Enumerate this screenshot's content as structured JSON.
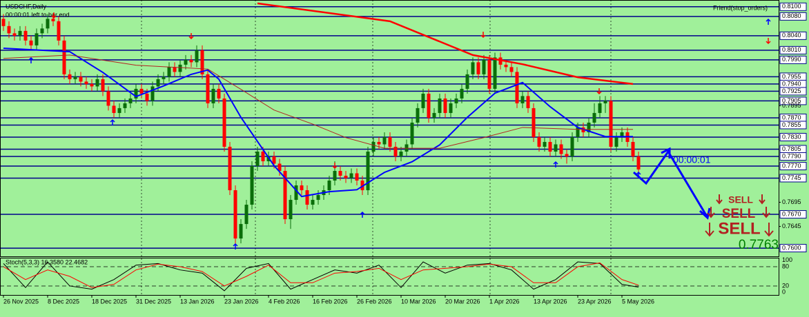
{
  "chart_data": {
    "type": "candlestick",
    "title": "USDCHF,Daily",
    "subtitle": "00:00:01 left to bar end",
    "indicator_label": "Friend(stop_orders)",
    "timer": "00:00:01",
    "signals": [
      "SELL",
      "SELL",
      "SELL"
    ],
    "last_price": 0.7763,
    "background": "#a0f09a",
    "up_color": "#0a6e0a",
    "down_color": "#ff0000",
    "level_color": "#00008b",
    "xlim": [
      -0.625,
      140.375
    ],
    "ylim": [
      0.7583,
      0.8114
    ],
    "xticks": [
      {
        "value": 0,
        "label": "26 Nov 2025"
      },
      {
        "value": 8,
        "label": "8 Dec 2025"
      },
      {
        "value": 16,
        "label": "18 Dec 2025"
      },
      {
        "value": 24,
        "label": "31 Dec 2025"
      },
      {
        "value": 32,
        "label": "13 Jan 2026"
      },
      {
        "value": 40,
        "label": "23 Jan 2026"
      },
      {
        "value": 48,
        "label": "4 Feb 2026"
      },
      {
        "value": 56,
        "label": "16 Feb 2026"
      },
      {
        "value": 64,
        "label": "26 Feb 2026"
      },
      {
        "value": 72,
        "label": "10 Mar 2026"
      },
      {
        "value": 80,
        "label": "20 Mar 2026"
      },
      {
        "value": 88,
        "label": "1 Apr 2026"
      },
      {
        "value": 96,
        "label": "13 Apr 2026"
      },
      {
        "value": 104,
        "label": "23 Apr 2026"
      },
      {
        "value": 112,
        "label": "5 May 2026"
      }
    ],
    "yticks": [
      {
        "value": 0.81,
        "label": "0.8100",
        "level": true
      },
      {
        "value": 0.808,
        "label": "0.8080",
        "level": true
      },
      {
        "value": 0.804,
        "label": "0.8040",
        "level": true
      },
      {
        "value": 0.801,
        "label": "0.8010",
        "level": true
      },
      {
        "value": 0.799,
        "label": "0.7990",
        "level": true
      },
      {
        "value": 0.7955,
        "label": "0.7955",
        "level": true
      },
      {
        "value": 0.794,
        "label": "0.7940",
        "level": true
      },
      {
        "value": 0.7925,
        "label": "0.7925",
        "level": true
      },
      {
        "value": 0.7905,
        "label": "0.7905",
        "level": true
      },
      {
        "value": 0.7895,
        "label": "0.7895",
        "level": false
      },
      {
        "value": 0.787,
        "label": "0.7870",
        "level": true
      },
      {
        "value": 0.7855,
        "label": "0.7855",
        "level": true
      },
      {
        "value": 0.783,
        "label": "0.7830",
        "level": true
      },
      {
        "value": 0.7805,
        "label": "0.7805",
        "level": true
      },
      {
        "value": 0.779,
        "label": "0.7790",
        "level": true
      },
      {
        "value": 0.777,
        "label": "0.7770",
        "level": true
      },
      {
        "value": 0.7745,
        "label": "0.7745",
        "level": true
      },
      {
        "value": 0.7695,
        "label": "0.7695",
        "level": false
      },
      {
        "value": 0.767,
        "label": "0.7670",
        "level": true
      },
      {
        "value": 0.7645,
        "label": "0.7645",
        "level": false
      },
      {
        "value": 0.76,
        "label": "0.7600",
        "level": true
      }
    ],
    "series": [
      {
        "values": [
          [
            0.8075,
            0.8085,
            0.805,
            0.806
          ],
          [
            0.806,
            0.807,
            0.8035,
            0.8045
          ],
          [
            0.8045,
            0.8055,
            0.803,
            0.804
          ],
          [
            0.804,
            0.806,
            0.803,
            0.805
          ],
          [
            0.805,
            0.806,
            0.802,
            0.803
          ],
          [
            0.803,
            0.804,
            0.801,
            0.802
          ],
          [
            0.802,
            0.8055,
            0.801,
            0.8045
          ],
          [
            0.8045,
            0.8065,
            0.8035,
            0.8055
          ],
          [
            0.8055,
            0.8085,
            0.8045,
            0.8075
          ],
          [
            0.8075,
            0.8085,
            0.806,
            0.807
          ],
          [
            0.807,
            0.808,
            0.802,
            0.803
          ],
          [
            0.803,
            0.804,
            0.795,
            0.796
          ],
          [
            0.796,
            0.797,
            0.794,
            0.795
          ],
          [
            0.795,
            0.7965,
            0.794,
            0.7955
          ],
          [
            0.7955,
            0.7965,
            0.7935,
            0.7945
          ],
          [
            0.7945,
            0.7955,
            0.793,
            0.794
          ],
          [
            0.794,
            0.795,
            0.7925,
            0.7935
          ],
          [
            0.7935,
            0.796,
            0.7925,
            0.795
          ],
          [
            0.795,
            0.796,
            0.7915,
            0.7925
          ],
          [
            0.7925,
            0.7935,
            0.7885,
            0.7895
          ],
          [
            0.7895,
            0.7905,
            0.787,
            0.788
          ],
          [
            0.788,
            0.79,
            0.787,
            0.789
          ],
          [
            0.789,
            0.791,
            0.788,
            0.79
          ],
          [
            0.79,
            0.792,
            0.789,
            0.791
          ],
          [
            0.791,
            0.794,
            0.79,
            0.793
          ],
          [
            0.793,
            0.794,
            0.791,
            0.792
          ],
          [
            0.792,
            0.793,
            0.7895,
            0.7905
          ],
          [
            0.7905,
            0.7945,
            0.7895,
            0.7935
          ],
          [
            0.7935,
            0.796,
            0.7925,
            0.795
          ],
          [
            0.795,
            0.7965,
            0.794,
            0.7955
          ],
          [
            0.7955,
            0.7985,
            0.7945,
            0.7975
          ],
          [
            0.7975,
            0.7985,
            0.7955,
            0.7965
          ],
          [
            0.7965,
            0.799,
            0.7955,
            0.798
          ],
          [
            0.798,
            0.8,
            0.797,
            0.799
          ],
          [
            0.799,
            0.8,
            0.7975,
            0.7985
          ],
          [
            0.7985,
            0.802,
            0.7975,
            0.801
          ],
          [
            0.801,
            0.802,
            0.795,
            0.796
          ],
          [
            0.796,
            0.797,
            0.789,
            0.79
          ],
          [
            0.79,
            0.794,
            0.789,
            0.793
          ],
          [
            0.793,
            0.794,
            0.79,
            0.791
          ],
          [
            0.791,
            0.792,
            0.78,
            0.781
          ],
          [
            0.781,
            0.782,
            0.771,
            0.772
          ],
          [
            0.772,
            0.773,
            0.7605,
            0.762
          ],
          [
            0.762,
            0.766,
            0.761,
            0.765
          ],
          [
            0.765,
            0.77,
            0.764,
            0.769
          ],
          [
            0.769,
            0.778,
            0.768,
            0.777
          ],
          [
            0.777,
            0.781,
            0.776,
            0.78
          ],
          [
            0.78,
            0.781,
            0.777,
            0.778
          ],
          [
            0.778,
            0.78,
            0.777,
            0.779
          ],
          [
            0.779,
            0.78,
            0.7765,
            0.7775
          ],
          [
            0.7775,
            0.7785,
            0.775,
            0.776
          ],
          [
            0.776,
            0.777,
            0.765,
            0.766
          ],
          [
            0.766,
            0.771,
            0.764,
            0.77
          ],
          [
            0.77,
            0.774,
            0.769,
            0.773
          ],
          [
            0.773,
            0.774,
            0.771,
            0.772
          ],
          [
            0.772,
            0.773,
            0.768,
            0.769
          ],
          [
            0.769,
            0.771,
            0.768,
            0.77
          ],
          [
            0.77,
            0.772,
            0.769,
            0.771
          ],
          [
            0.771,
            0.773,
            0.77,
            0.772
          ],
          [
            0.772,
            0.775,
            0.771,
            0.774
          ],
          [
            0.774,
            0.778,
            0.773,
            0.776
          ],
          [
            0.776,
            0.777,
            0.774,
            0.775
          ],
          [
            0.775,
            0.776,
            0.7735,
            0.7745
          ],
          [
            0.7745,
            0.7765,
            0.7735,
            0.7755
          ],
          [
            0.7755,
            0.7765,
            0.773,
            0.774
          ],
          [
            0.774,
            0.775,
            0.771,
            0.772
          ],
          [
            0.772,
            0.781,
            0.771,
            0.78
          ],
          [
            0.78,
            0.783,
            0.779,
            0.782
          ],
          [
            0.782,
            0.783,
            0.7805,
            0.7815
          ],
          [
            0.7815,
            0.784,
            0.7805,
            0.783
          ],
          [
            0.783,
            0.784,
            0.78,
            0.781
          ],
          [
            0.781,
            0.782,
            0.778,
            0.779
          ],
          [
            0.779,
            0.781,
            0.778,
            0.78
          ],
          [
            0.78,
            0.7825,
            0.779,
            0.7815
          ],
          [
            0.7815,
            0.787,
            0.7805,
            0.786
          ],
          [
            0.786,
            0.79,
            0.785,
            0.789
          ],
          [
            0.789,
            0.793,
            0.788,
            0.792
          ],
          [
            0.792,
            0.793,
            0.786,
            0.787
          ],
          [
            0.787,
            0.789,
            0.786,
            0.788
          ],
          [
            0.788,
            0.792,
            0.787,
            0.791
          ],
          [
            0.791,
            0.792,
            0.787,
            0.788
          ],
          [
            0.788,
            0.791,
            0.787,
            0.79
          ],
          [
            0.79,
            0.792,
            0.789,
            0.791
          ],
          [
            0.791,
            0.794,
            0.79,
            0.793
          ],
          [
            0.793,
            0.797,
            0.792,
            0.796
          ],
          [
            0.796,
            0.7995,
            0.795,
            0.7985
          ],
          [
            0.7985,
            0.7995,
            0.795,
            0.796
          ],
          [
            0.796,
            0.8,
            0.795,
            0.799
          ],
          [
            0.799,
            0.8,
            0.792,
            0.793
          ],
          [
            0.793,
            0.8005,
            0.792,
            0.7995
          ],
          [
            0.7995,
            0.8005,
            0.797,
            0.798
          ],
          [
            0.798,
            0.799,
            0.7965,
            0.7975
          ],
          [
            0.7975,
            0.7985,
            0.7955,
            0.7965
          ],
          [
            0.7965,
            0.7975,
            0.789,
            0.79
          ],
          [
            0.79,
            0.7925,
            0.789,
            0.7915
          ],
          [
            0.7915,
            0.7925,
            0.788,
            0.789
          ],
          [
            0.789,
            0.79,
            0.782,
            0.783
          ],
          [
            0.783,
            0.784,
            0.78,
            0.781
          ],
          [
            0.781,
            0.783,
            0.78,
            0.782
          ],
          [
            0.782,
            0.783,
            0.779,
            0.78
          ],
          [
            0.78,
            0.7825,
            0.779,
            0.7815
          ],
          [
            0.7815,
            0.7825,
            0.7785,
            0.7795
          ],
          [
            0.7795,
            0.7805,
            0.7775,
            0.779
          ],
          [
            0.779,
            0.784,
            0.778,
            0.783
          ],
          [
            0.783,
            0.786,
            0.782,
            0.785
          ],
          [
            0.785,
            0.786,
            0.783,
            0.784
          ],
          [
            0.784,
            0.787,
            0.783,
            0.786
          ],
          [
            0.786,
            0.79,
            0.785,
            0.788
          ],
          [
            0.788,
            0.7915,
            0.787,
            0.79
          ],
          [
            0.79,
            0.7915,
            0.788,
            0.7905
          ],
          [
            0.7905,
            0.7915,
            0.78,
            0.781
          ],
          [
            0.781,
            0.784,
            0.78,
            0.783
          ],
          [
            0.783,
            0.785,
            0.782,
            0.784
          ],
          [
            0.784,
            0.785,
            0.781,
            0.782
          ],
          [
            0.782,
            0.783,
            0.778,
            0.779
          ],
          [
            0.779,
            0.78,
            0.7755,
            0.7763
          ]
        ]
      }
    ],
    "lines": [
      {
        "color": "#0000ff",
        "width": 2,
        "x": [
          0,
          5,
          12,
          18,
          24,
          29,
          34,
          37,
          39,
          43,
          49,
          54,
          59,
          64,
          69,
          74,
          79,
          84,
          89,
          94,
          99,
          104,
          109,
          114
        ],
        "values": [
          0.8014,
          0.8011,
          0.8007,
          0.7964,
          0.7914,
          0.7936,
          0.796,
          0.7969,
          0.795,
          0.7871,
          0.7771,
          0.7707,
          0.7717,
          0.7721,
          0.7757,
          0.7779,
          0.7814,
          0.7871,
          0.7921,
          0.7943,
          0.7893,
          0.785,
          0.7831,
          0.7831
        ]
      },
      {
        "color": "#ff0000",
        "width": 2.5,
        "x": [
          46,
          70,
          85,
          94,
          104,
          114
        ],
        "values": [
          0.8107,
          0.807,
          0.8,
          0.7981,
          0.7954,
          0.794
        ]
      },
      {
        "color": "#b22222",
        "width": 1,
        "x": [
          0,
          12,
          24,
          37,
          43,
          49,
          56,
          62,
          69,
          79,
          87,
          94,
          104,
          114
        ],
        "values": [
          0.7993,
          0.8,
          0.7979,
          0.7971,
          0.7929,
          0.7886,
          0.7857,
          0.7829,
          0.7807,
          0.7807,
          0.7829,
          0.785,
          0.7846,
          0.7846
        ]
      }
    ],
    "stochastic": {
      "label": "Stoch(5,3,3) 16.3580 22.4682",
      "ylim": [
        -8,
        108
      ],
      "yticks": [
        0,
        20,
        80,
        100
      ],
      "series": [
        {
          "color": "#000000",
          "x": [
            0,
            4,
            8,
            12,
            16,
            20,
            24,
            28,
            32,
            36,
            40,
            44,
            48,
            52,
            56,
            60,
            64,
            68,
            72,
            76,
            80,
            84,
            88,
            92,
            96,
            100,
            104,
            108,
            112,
            115
          ],
          "values": [
            90,
            15,
            95,
            20,
            10,
            40,
            85,
            90,
            70,
            60,
            5,
            75,
            90,
            10,
            40,
            70,
            60,
            85,
            15,
            95,
            60,
            85,
            90,
            70,
            10,
            40,
            95,
            90,
            25,
            16.358
          ]
        },
        {
          "color": "#ff0000",
          "x": [
            0,
            4,
            8,
            12,
            16,
            20,
            24,
            28,
            32,
            36,
            40,
            44,
            48,
            52,
            56,
            60,
            64,
            68,
            72,
            76,
            80,
            84,
            88,
            92,
            96,
            100,
            104,
            108,
            112,
            115
          ],
          "values": [
            80,
            40,
            70,
            50,
            15,
            25,
            70,
            88,
            80,
            65,
            20,
            50,
            85,
            30,
            30,
            60,
            65,
            75,
            40,
            70,
            75,
            80,
            88,
            80,
            30,
            30,
            80,
            92,
            40,
            22.4682
          ]
        }
      ]
    }
  }
}
